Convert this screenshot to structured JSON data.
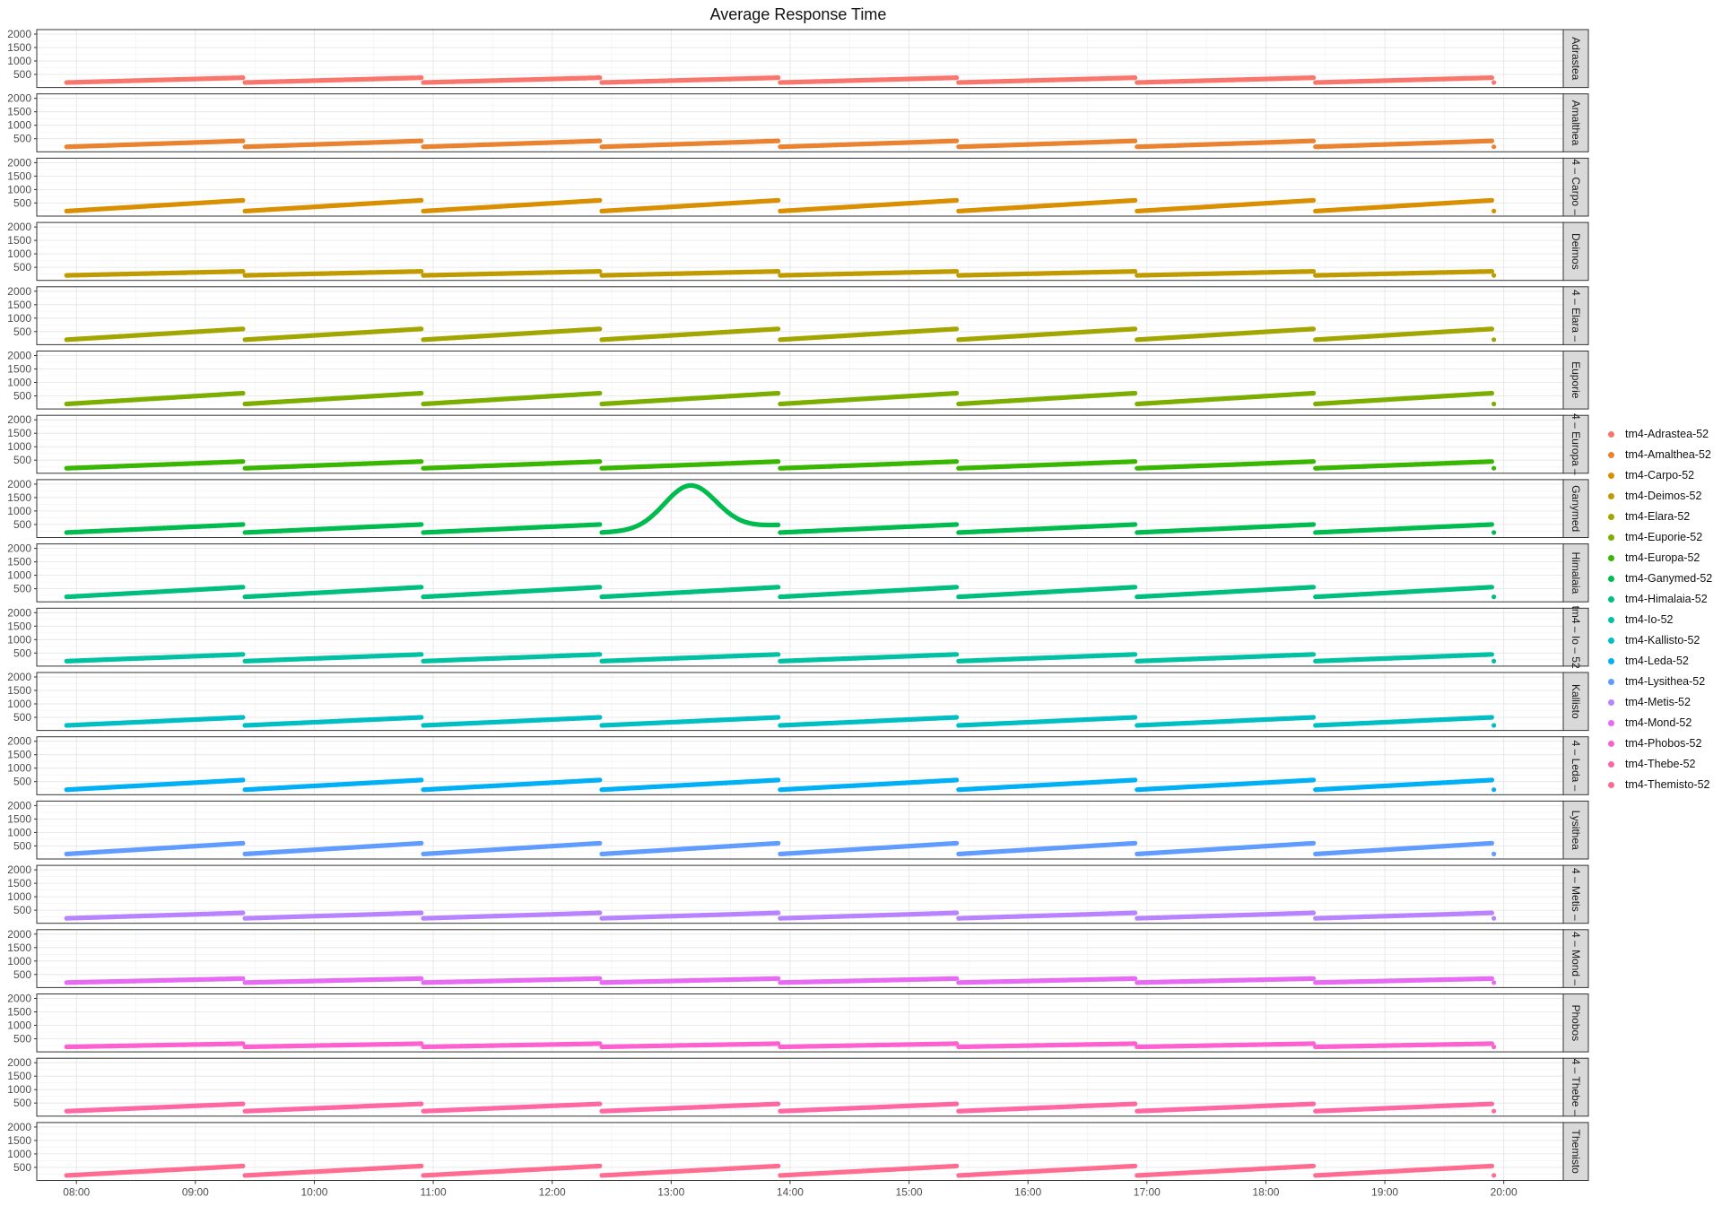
{
  "title": "Average Response Time",
  "chart_data": {
    "type": "scatter",
    "title": "Average Response Time",
    "xlabel": "",
    "ylabel": "",
    "x_ticks": [
      "08:00",
      "09:00",
      "10:00",
      "11:00",
      "12:00",
      "13:00",
      "14:00",
      "15:00",
      "16:00",
      "17:00",
      "18:00",
      "19:00",
      "20:00"
    ],
    "xlim": [
      "07:40",
      "20:30"
    ],
    "y_ticks": [
      500,
      1000,
      1500,
      2000
    ],
    "ylim": [
      80,
      2100
    ],
    "grid": true,
    "legend_placement": "right",
    "facet_layout": "rows",
    "cycle_note": "each series repeats a ramp starting at 07:55 and resetting every 90 minutes until 19:25, plus a single point at 19:55",
    "cycle_starts": [
      "07:55",
      "09:25",
      "10:55",
      "12:25",
      "13:55",
      "15:25",
      "16:55",
      "18:25"
    ],
    "cycle_minutes": 90,
    "final_point_time": "19:55",
    "series": [
      {
        "name": "tm4-Adrastea-52",
        "strip": "Adrastea",
        "color": "#F8766D",
        "ramp_start": 200,
        "ramp_end": 380
      },
      {
        "name": "tm4-Amalthea-52",
        "strip": "Amalthea",
        "color": "#EA8331",
        "ramp_start": 200,
        "ramp_end": 420
      },
      {
        "name": "tm4-Carpo-52",
        "strip": "4 – Carpo –",
        "color": "#D89000",
        "ramp_start": 200,
        "ramp_end": 600
      },
      {
        "name": "tm4-Deimos-52",
        "strip": "Deimos",
        "color": "#C09B00",
        "ramp_start": 200,
        "ramp_end": 350
      },
      {
        "name": "tm4-Elara-52",
        "strip": "4 – Elara –",
        "color": "#A3A500",
        "ramp_start": 200,
        "ramp_end": 600
      },
      {
        "name": "tm4-Euporie-52",
        "strip": "Euporie",
        "color": "#7CAE00",
        "ramp_start": 200,
        "ramp_end": 600
      },
      {
        "name": "tm4-Europa-52",
        "strip": "4 – Europa –",
        "color": "#39B600",
        "ramp_start": 200,
        "ramp_end": 450
      },
      {
        "name": "tm4-Ganymed-52",
        "strip": "Ganymed",
        "color": "#00BB4E",
        "ramp_start": 200,
        "ramp_end": 500,
        "anomaly": {
          "cycle_start": "12:25",
          "peak_time": "13:10",
          "peak_value": 1950,
          "end_value": 480
        }
      },
      {
        "name": "tm4-Himalaia-52",
        "strip": "Himalaia",
        "color": "#00BF7D",
        "ramp_start": 200,
        "ramp_end": 560
      },
      {
        "name": "tm4-Io-52",
        "strip": "tm4 – Io – 52",
        "color": "#00C1A3",
        "ramp_start": 200,
        "ramp_end": 450
      },
      {
        "name": "tm4-Kallisto-52",
        "strip": "Kallisto",
        "color": "#00BFC4",
        "ramp_start": 200,
        "ramp_end": 500
      },
      {
        "name": "tm4-Leda-52",
        "strip": "4 – Leda –",
        "color": "#00B0F6",
        "ramp_start": 200,
        "ramp_end": 560
      },
      {
        "name": "tm4-Lysithea-52",
        "strip": "Lysithea",
        "color": "#619CFF",
        "ramp_start": 200,
        "ramp_end": 600
      },
      {
        "name": "tm4-Metis-52",
        "strip": "4 – Metis –",
        "color": "#B983FF",
        "ramp_start": 200,
        "ramp_end": 400
      },
      {
        "name": "tm4-Mond-52",
        "strip": "4 – Mond –",
        "color": "#E76BF3",
        "ramp_start": 200,
        "ramp_end": 350
      },
      {
        "name": "tm4-Phobos-52",
        "strip": "Phobos",
        "color": "#FD61D1",
        "ramp_start": 200,
        "ramp_end": 320
      },
      {
        "name": "tm4-Thebe-52",
        "strip": "4 – Thebe –",
        "color": "#FF67A4",
        "ramp_start": 200,
        "ramp_end": 470
      },
      {
        "name": "tm4-Themisto-52",
        "strip": "Themisto",
        "color": "#FF6C91",
        "ramp_start": 200,
        "ramp_end": 550
      }
    ]
  }
}
